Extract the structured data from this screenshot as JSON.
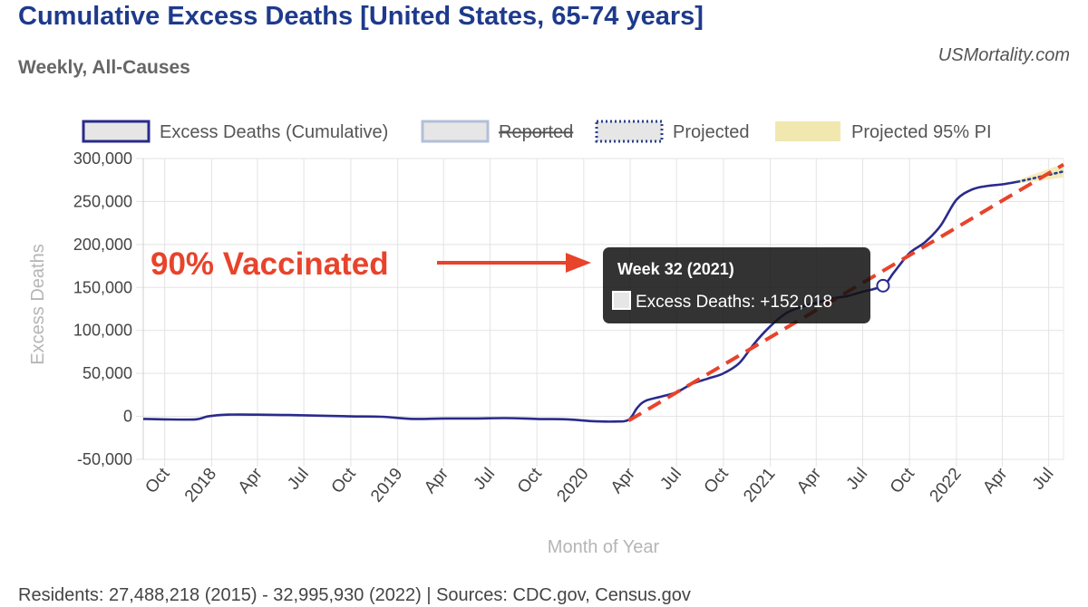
{
  "header": {
    "title": "Cumulative Excess Deaths [United States, 65-74 years]",
    "subtitle": "Weekly, All-Causes",
    "watermark": "USMortality.com"
  },
  "footer": {
    "text": "Residents: 27,488,218 (2015) - 32,995,930 (2022) | Sources: CDC.gov, Census.gov"
  },
  "annotation": {
    "label": "90% Vaccinated",
    "color": "#e8432b"
  },
  "tooltip": {
    "title": "Week 32 (2021)",
    "body": "Excess Deaths: +152,018",
    "x": "2021-08-10",
    "y": 152018
  },
  "chart_data": {
    "type": "line",
    "xlabel": "Month of Year",
    "ylabel": "Excess Deaths",
    "xlim": [
      "2017-08-20",
      "2022-07-30"
    ],
    "ylim": [
      -50000,
      300000
    ],
    "yticks": [
      -50000,
      0,
      50000,
      100000,
      150000,
      200000,
      250000,
      300000
    ],
    "ytick_labels": [
      "-50,000",
      "0",
      "50,000",
      "100,000",
      "150,000",
      "200,000",
      "250,000",
      "300,000"
    ],
    "xticks": [
      {
        "date": "2017-10-01",
        "label": "Oct"
      },
      {
        "date": "2018-01-01",
        "label": "2018"
      },
      {
        "date": "2018-04-01",
        "label": "Apr"
      },
      {
        "date": "2018-07-01",
        "label": "Jul"
      },
      {
        "date": "2018-10-01",
        "label": "Oct"
      },
      {
        "date": "2019-01-01",
        "label": "2019"
      },
      {
        "date": "2019-04-01",
        "label": "Apr"
      },
      {
        "date": "2019-07-01",
        "label": "Jul"
      },
      {
        "date": "2019-10-01",
        "label": "Oct"
      },
      {
        "date": "2020-01-01",
        "label": "2020"
      },
      {
        "date": "2020-04-01",
        "label": "Apr"
      },
      {
        "date": "2020-07-01",
        "label": "Jul"
      },
      {
        "date": "2020-10-01",
        "label": "Oct"
      },
      {
        "date": "2021-01-01",
        "label": "2021"
      },
      {
        "date": "2021-04-01",
        "label": "Apr"
      },
      {
        "date": "2021-07-01",
        "label": "Jul"
      },
      {
        "date": "2021-10-01",
        "label": "Oct"
      },
      {
        "date": "2022-01-01",
        "label": "2022"
      },
      {
        "date": "2022-04-01",
        "label": "Apr"
      },
      {
        "date": "2022-07-01",
        "label": "Jul"
      }
    ],
    "legend": {
      "placement": "top",
      "items": [
        {
          "label": "Excess Deaths (Cumulative)",
          "style": "solid",
          "color": "#2a2a8c",
          "struck": false
        },
        {
          "label": "Reported",
          "style": "solid",
          "color": "#b3bfd8",
          "struck": true
        },
        {
          "label": "Projected",
          "style": "dotted",
          "color": "#2a3f8c",
          "struck": false
        },
        {
          "label": "Projected 95% PI",
          "style": "fill",
          "color": "#f1e8b0",
          "struck": false
        }
      ]
    },
    "colors": {
      "excess": "#2a2a8c",
      "projected": "#2a3f8c",
      "pi": "#f1e8b0",
      "trend": "#e8432b",
      "grid": "#e3e3e3"
    },
    "grid": true,
    "series": [
      {
        "name": "Excess Deaths (Cumulative)",
        "points": [
          [
            "2017-08-20",
            -3000
          ],
          [
            "2017-10-01",
            -3500
          ],
          [
            "2017-12-01",
            -3500
          ],
          [
            "2017-12-25",
            0
          ],
          [
            "2018-02-01",
            2000
          ],
          [
            "2018-04-01",
            2000
          ],
          [
            "2018-06-01",
            1500
          ],
          [
            "2018-08-01",
            800
          ],
          [
            "2018-10-01",
            0
          ],
          [
            "2018-12-01",
            -500
          ],
          [
            "2019-02-01",
            -3000
          ],
          [
            "2019-04-01",
            -2500
          ],
          [
            "2019-06-01",
            -2500
          ],
          [
            "2019-08-01",
            -2000
          ],
          [
            "2019-10-01",
            -3000
          ],
          [
            "2019-12-01",
            -3500
          ],
          [
            "2020-01-15",
            -5500
          ],
          [
            "2020-03-01",
            -6000
          ],
          [
            "2020-03-29",
            -4000
          ],
          [
            "2020-04-15",
            10000
          ],
          [
            "2020-05-01",
            18000
          ],
          [
            "2020-06-01",
            23000
          ],
          [
            "2020-07-01",
            28000
          ],
          [
            "2020-08-01",
            38000
          ],
          [
            "2020-09-01",
            44000
          ],
          [
            "2020-10-01",
            50000
          ],
          [
            "2020-11-01",
            62000
          ],
          [
            "2020-12-01",
            85000
          ],
          [
            "2021-01-01",
            105000
          ],
          [
            "2021-02-01",
            120000
          ],
          [
            "2021-03-01",
            127000
          ],
          [
            "2021-04-01",
            132000
          ],
          [
            "2021-05-01",
            137000
          ],
          [
            "2021-06-01",
            140000
          ],
          [
            "2021-07-01",
            145000
          ],
          [
            "2021-08-10",
            152018
          ],
          [
            "2021-09-01",
            168000
          ],
          [
            "2021-10-01",
            190000
          ],
          [
            "2021-11-01",
            203000
          ],
          [
            "2021-12-01",
            222000
          ],
          [
            "2022-01-01",
            252000
          ],
          [
            "2022-02-01",
            264000
          ],
          [
            "2022-03-01",
            268000
          ],
          [
            "2022-04-01",
            270000
          ],
          [
            "2022-05-01",
            273000
          ]
        ]
      },
      {
        "name": "Projected",
        "points": [
          [
            "2022-05-01",
            273000
          ],
          [
            "2022-06-01",
            277000
          ],
          [
            "2022-07-30",
            285000
          ]
        ]
      },
      {
        "name": "Projected 95% PI",
        "upper": [
          [
            "2022-05-01",
            275000
          ],
          [
            "2022-07-30",
            294000
          ]
        ],
        "lower": [
          [
            "2022-05-01",
            271000
          ],
          [
            "2022-07-30",
            278000
          ]
        ]
      },
      {
        "name": "",
        "style": "dashed",
        "points": [
          [
            "2020-03-29",
            -5000
          ],
          [
            "2022-07-30",
            293000
          ]
        ]
      }
    ]
  }
}
